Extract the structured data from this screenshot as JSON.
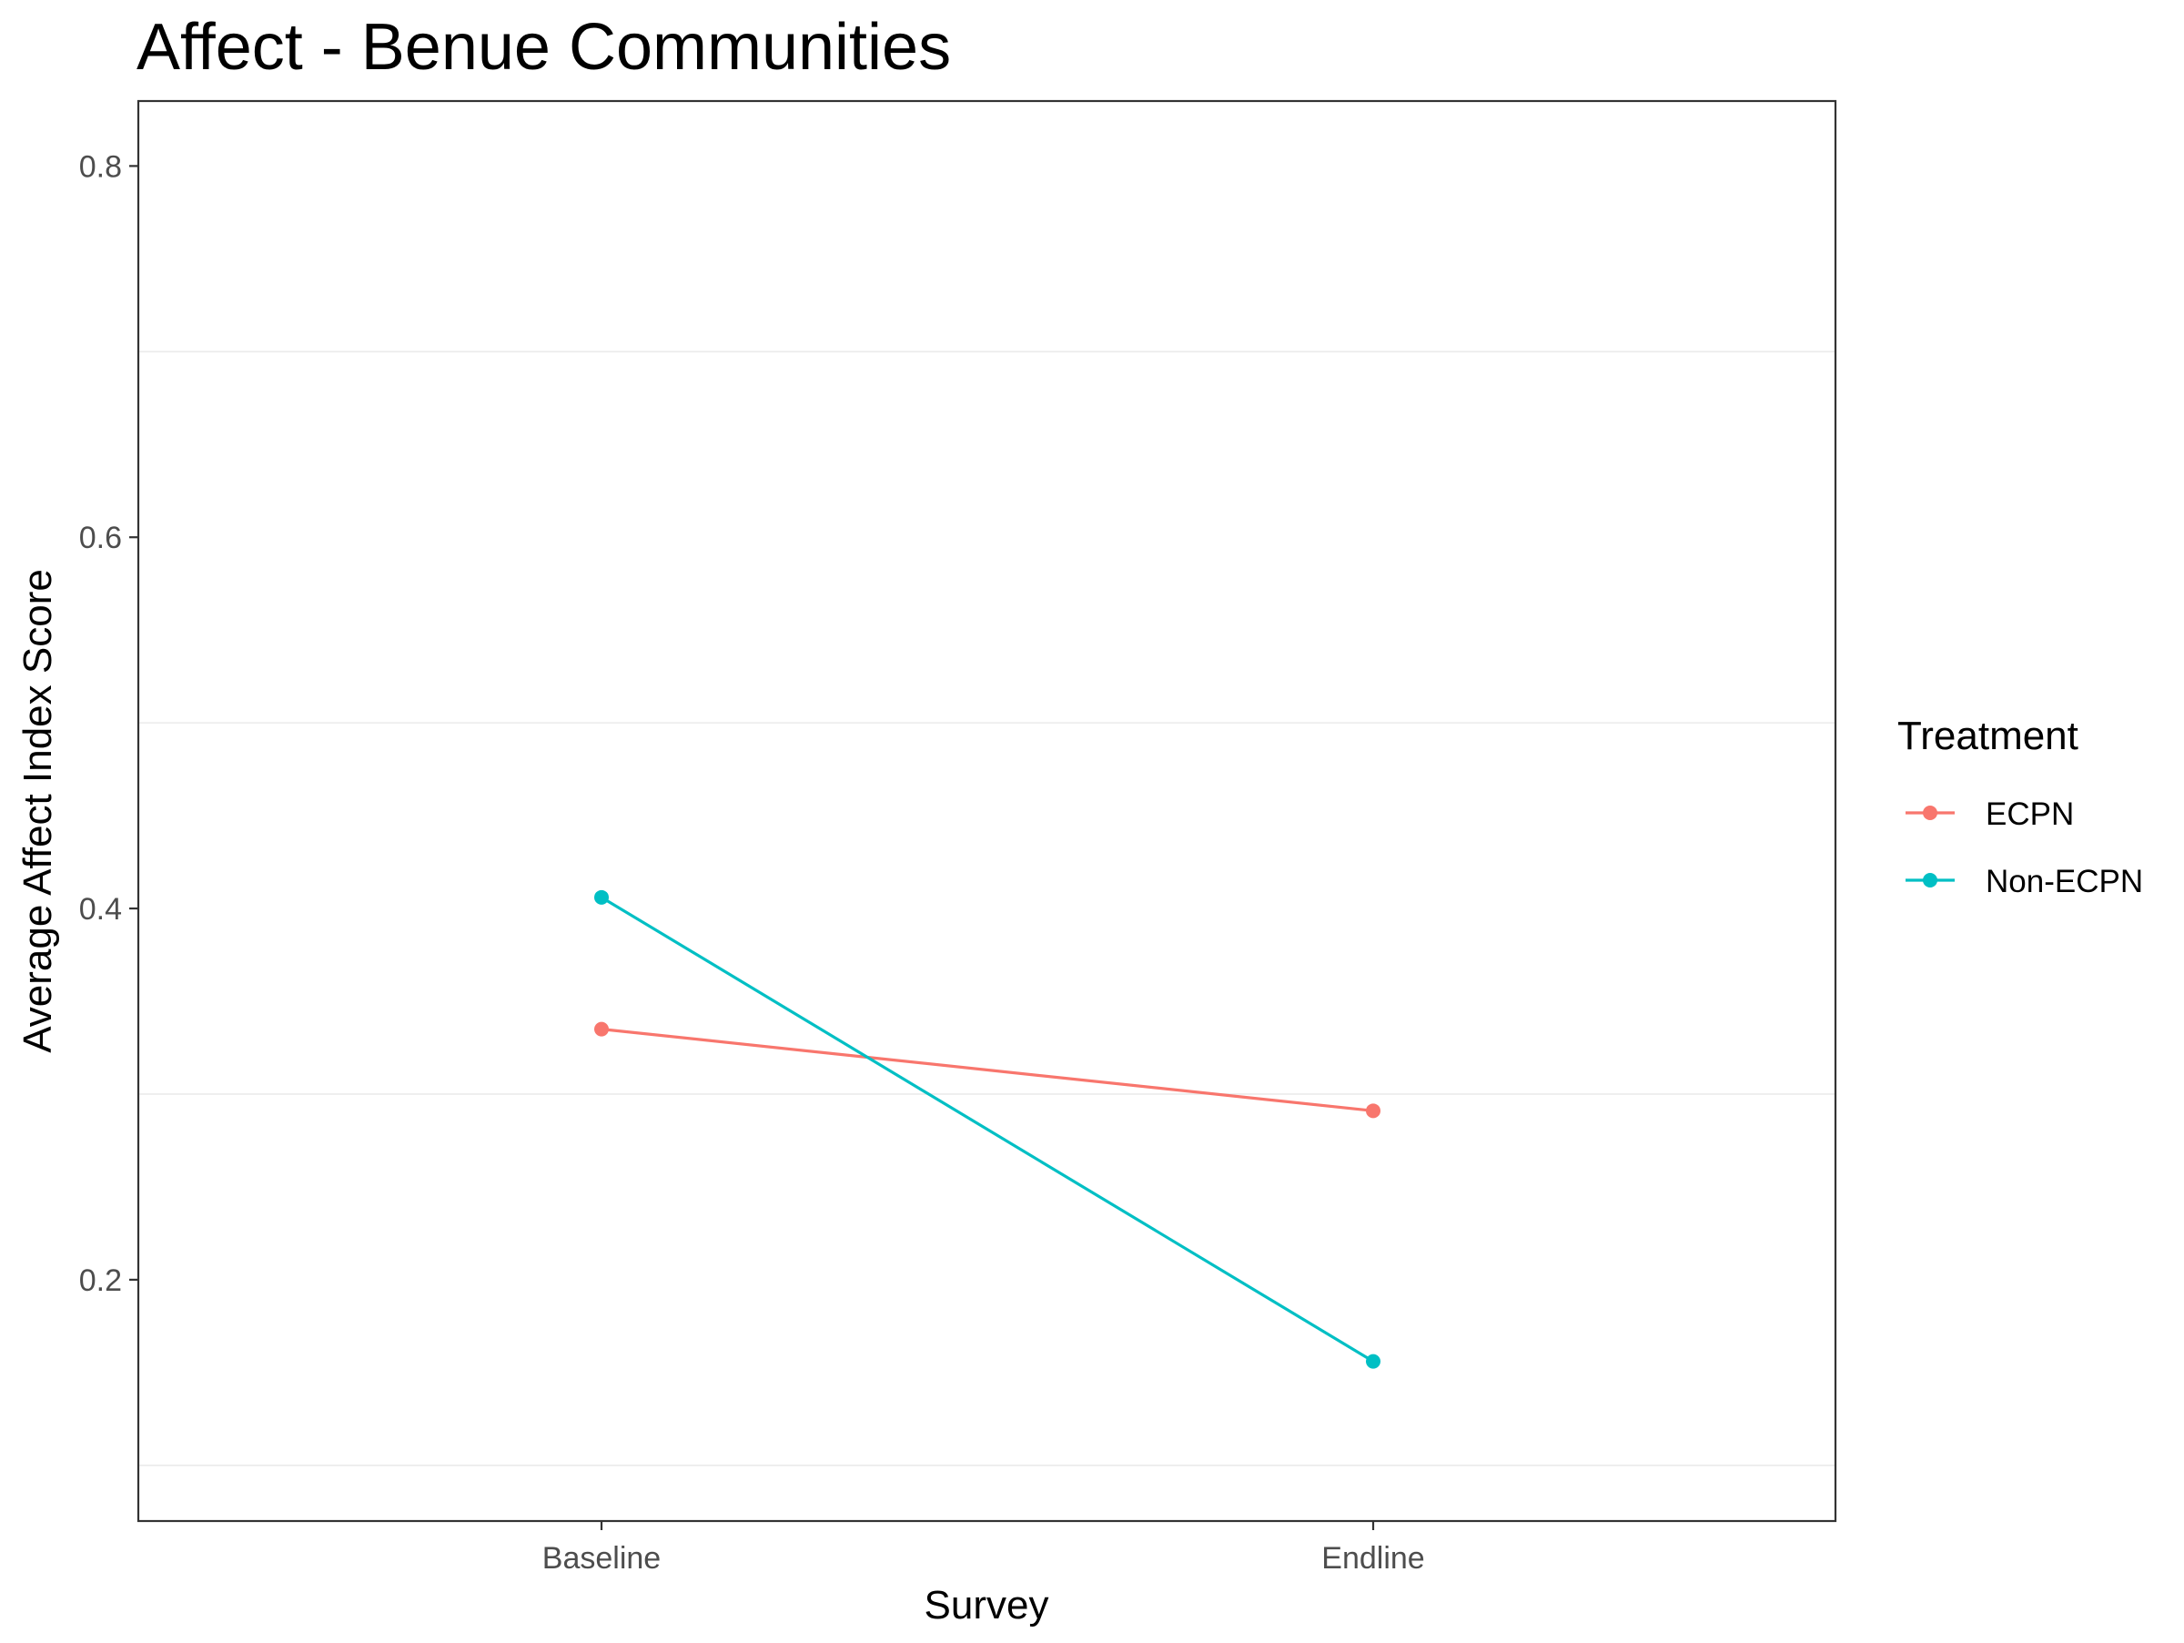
{
  "chart_data": {
    "type": "line",
    "title": "Affect - Benue Communities",
    "xlabel": "Survey",
    "ylabel": "Average Affect Index Score",
    "categories": [
      "Baseline",
      "Endline"
    ],
    "ylim": [
      0.07,
      0.835
    ],
    "y_ticks": [
      0.2,
      0.4,
      0.6,
      0.8
    ],
    "y_tick_labels": [
      "0.2",
      "0.4",
      "0.6",
      "0.8"
    ],
    "grid": true,
    "legend": {
      "title": "Treatment",
      "placement": "right"
    },
    "series": [
      {
        "name": "ECPN",
        "color": "#F8766D",
        "values": [
          0.335,
          0.291
        ]
      },
      {
        "name": "Non-ECPN",
        "color": "#00BFC4",
        "values": [
          0.406,
          0.156
        ]
      }
    ]
  }
}
